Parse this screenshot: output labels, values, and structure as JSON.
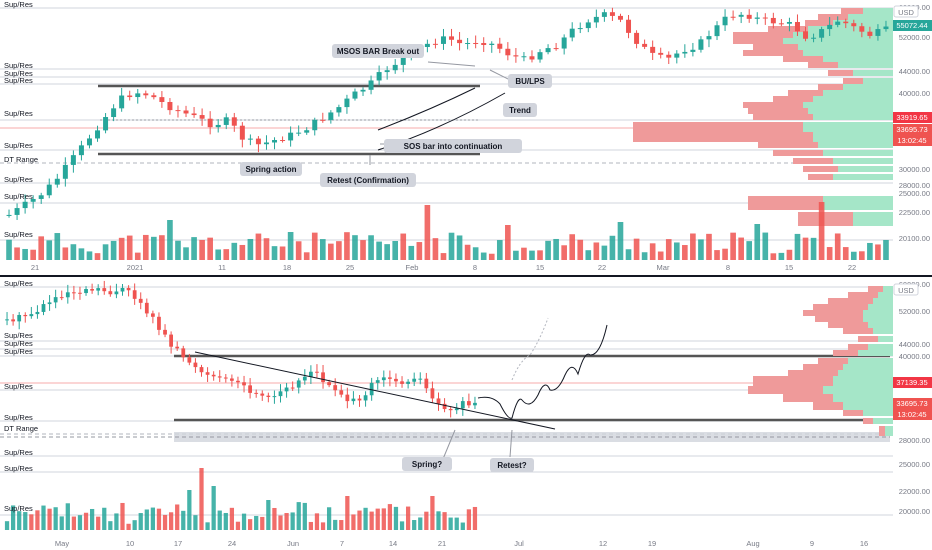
{
  "colors": {
    "up": "#26a69a",
    "down": "#ef5350",
    "vpUp": "#a5e6c8",
    "vpDown": "#ef9a9a",
    "level": "#555555",
    "label": "#d1d4dc",
    "red": "#f23645"
  },
  "chart_data": [
    {
      "type": "candlestick",
      "currency": "USD",
      "x_ticks": [
        "21",
        "2021",
        "11",
        "18",
        "25",
        "Feb",
        "8",
        "15",
        "22",
        "Mar",
        "8",
        "15",
        "22"
      ],
      "y_ticks": [
        "60000.00",
        "52000.00",
        "44000.00",
        "40000.00",
        "30000.00",
        "28000.00",
        "25000.00",
        "22500.00",
        "20100.00"
      ],
      "level_labels": [
        "Sup/Res",
        "Sup/Res",
        "Sup/Res",
        "Sup/Res",
        "Sup/Res",
        "Sup/Res",
        "DT Range",
        "Sup/Res",
        "Sup/Res",
        "Sup/Res"
      ],
      "price_tags": [
        "55072.44",
        "33919.65",
        "33695.73",
        "13:02:45"
      ],
      "annotations": [
        "MSOS BAR Break out",
        "BU/LPS",
        "Trend",
        "SOS bar into continuation",
        "Spring action",
        "Retest (Confirmation)"
      ]
    },
    {
      "type": "candlestick",
      "currency": "USD",
      "x_ticks": [
        "May",
        "10",
        "17",
        "24",
        "Jun",
        "7",
        "14",
        "21",
        "Jul",
        "12",
        "19",
        "Aug",
        "9",
        "16"
      ],
      "y_ticks": [
        "60000.00",
        "52000.00",
        "44000.00",
        "40000.00",
        "30000.00",
        "28000.00",
        "25000.00",
        "22000.00",
        "20000.00"
      ],
      "level_labels": [
        "Sup/Res",
        "Sup/Res",
        "Sup/Res",
        "Sup/Res",
        "Sup/Res",
        "Sup/Res",
        "DT Range",
        "Sup/Res",
        "Sup/Res",
        "Sup/Res"
      ],
      "price_tags": [
        "37139.35",
        "33695.73",
        "13:02:45"
      ],
      "annotations": [
        "Spring?",
        "Retest?"
      ]
    }
  ]
}
